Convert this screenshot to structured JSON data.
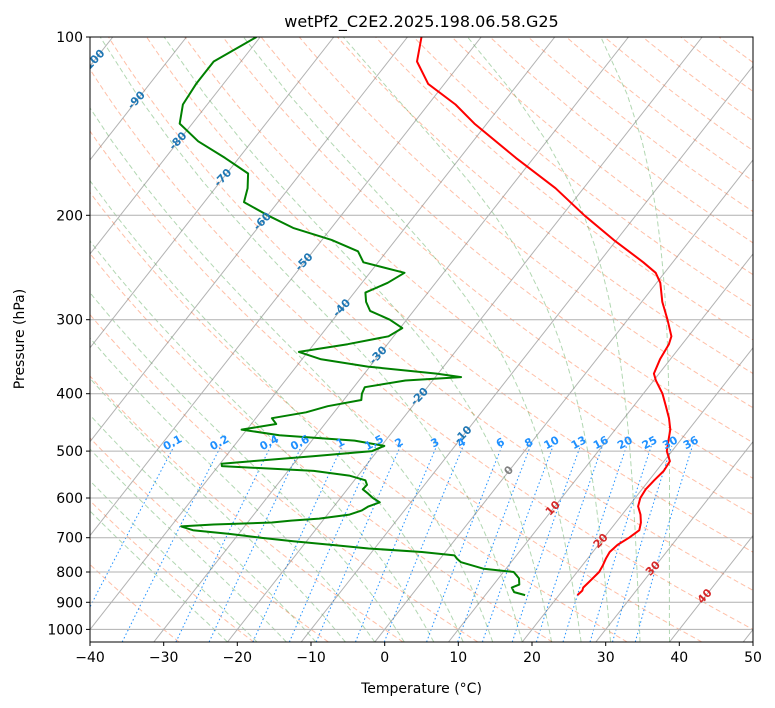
{
  "chart_data": {
    "type": "line",
    "chart_kind": "Skew-T log-P diagram",
    "title": "wetPf2_C2E2.2025.198.06.58.G25",
    "xlabel": "Temperature (°C)",
    "ylabel": "Pressure (hPa)",
    "xlim": [
      -40,
      50
    ],
    "ylim": [
      1050,
      100
    ],
    "y_scale": "log",
    "grid": true,
    "x_ticks": [
      "−40",
      "−30",
      "−20",
      "−10",
      "0",
      "10",
      "20",
      "30",
      "40",
      "50"
    ],
    "y_ticks": [
      "100",
      "200",
      "300",
      "400",
      "500",
      "600",
      "700",
      "800",
      "900",
      "1000"
    ],
    "isotherm_labels": [
      "-100",
      "-90",
      "-80",
      "-70",
      "-60",
      "-50",
      "-40",
      "-30",
      "-20",
      "-10",
      "0",
      "10",
      "20",
      "30",
      "40"
    ],
    "mixing_ratio_labels": [
      "0.1",
      "0.2",
      "0.4",
      "0.6",
      "1",
      "1.5",
      "2",
      "3",
      "4",
      "6",
      "8",
      "10",
      "13",
      "16",
      "20",
      "25",
      "30",
      "36"
    ],
    "colors": {
      "temperature": "#ff0000",
      "dewpoint": "#008000",
      "isotherm_label_cold": "#1f77b4",
      "isotherm_label_zero": "#808080",
      "isotherm_label_warm": "#d62728",
      "mixing_ratio": "#1e90ff",
      "dry_adiabat": "#ff7f50",
      "moist_adiabat": "#228b22",
      "skewed_isotherm": "#7f7f7f"
    },
    "series": [
      {
        "key": "temperature",
        "pressure": [
          875,
          860,
          850,
          830,
          800,
          780,
          760,
          740,
          720,
          700,
          680,
          660,
          640,
          620,
          600,
          580,
          560,
          540,
          520,
          500,
          480,
          460,
          440,
          420,
          400,
          380,
          370,
          350,
          330,
          320,
          300,
          280,
          260,
          250,
          240,
          220,
          200,
          180,
          160,
          140,
          130,
          120,
          110,
          100
        ],
        "values": [
          22.5,
          22.7,
          22.5,
          22.7,
          23.0,
          22.8,
          22.5,
          22.3,
          22.6,
          23.4,
          24.0,
          23.4,
          22.5,
          21.3,
          20.7,
          20.5,
          20.7,
          21.0,
          20.8,
          19.3,
          18.4,
          17.5,
          16.1,
          14.4,
          12.6,
          10.3,
          9.3,
          8.6,
          8.2,
          7.7,
          5.4,
          2.8,
          0.5,
          -1.2,
          -4.0,
          -10.4,
          -17.0,
          -23.8,
          -32.4,
          -41.7,
          -46.3,
          -52.2,
          -56.1,
          -58.1
        ]
      },
      {
        "key": "dewpoint",
        "pressure": [
          875,
          865,
          850,
          840,
          820,
          800,
          790,
          770,
          760,
          750,
          740,
          730,
          720,
          710,
          700,
          690,
          680,
          675,
          670,
          665,
          660,
          655,
          650,
          640,
          630,
          620,
          610,
          600,
          590,
          580,
          570,
          560,
          550,
          540,
          530,
          525,
          520,
          510,
          500,
          490,
          480,
          470,
          460,
          450,
          440,
          430,
          420,
          410,
          400,
          390,
          380,
          375,
          370,
          360,
          350,
          340,
          330,
          320,
          310,
          300,
          290,
          280,
          270,
          260,
          250,
          240,
          230,
          220,
          210,
          200,
          190,
          180,
          170,
          160,
          150,
          140,
          130,
          120,
          110,
          100
        ],
        "values": [
          15.4,
          13.6,
          12.8,
          13.5,
          12.8,
          11.4,
          7.0,
          3.2,
          2.3,
          1.6,
          -3.2,
          -10.8,
          -16.2,
          -21.8,
          -26.6,
          -31.1,
          -36.6,
          -37.6,
          -38.6,
          -34.4,
          -26.7,
          -24.3,
          -20.7,
          -17.0,
          -15.8,
          -15.3,
          -14.2,
          -15.6,
          -16.7,
          -17.9,
          -17.8,
          -18.5,
          -21.2,
          -26.5,
          -39.5,
          -39.8,
          -36.0,
          -28.2,
          -20.7,
          -19.6,
          -24.2,
          -35.0,
          -40.7,
          -36.6,
          -37.8,
          -33.8,
          -31.5,
          -27.6,
          -28.2,
          -28.5,
          -23.7,
          -16.5,
          -20.2,
          -30.3,
          -37.4,
          -41.2,
          -35.4,
          -30.7,
          -29.7,
          -32.3,
          -35.9,
          -37.4,
          -38.5,
          -36.5,
          -35.3,
          -42.0,
          -43.9,
          -48.7,
          -55.2,
          -60.0,
          -64.6,
          -65.6,
          -67.1,
          -71.9,
          -77.3,
          -81.7,
          -83.3,
          -83.7,
          -83.7,
          -80.5
        ]
      }
    ]
  }
}
